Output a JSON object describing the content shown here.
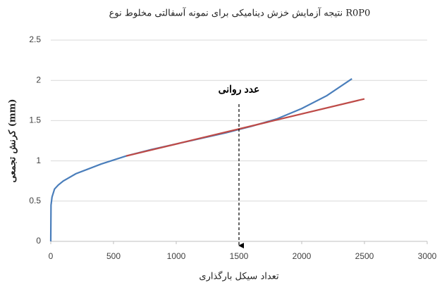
{
  "chart_data": {
    "type": "line",
    "title": "نتیجه آزمایش خزش دینامیکی برای نمونه آسفالتی مخلوط نوع R0P0",
    "xlabel": "تعداد سیکل بارگذاری",
    "ylabel": "کرنش تجمعی (mm)",
    "xlim": [
      0,
      3000
    ],
    "xticks": [
      0,
      500,
      1000,
      1500,
      2000,
      2500,
      3000
    ],
    "ylim": [
      0,
      2.5
    ],
    "yticks": [
      0,
      0.5,
      1,
      1.5,
      2,
      2.5
    ],
    "grid": true,
    "series": [
      {
        "color": "#4a7ebb",
        "x": [
          0,
          2,
          10,
          30,
          60,
          100,
          200,
          300,
          400,
          500,
          600,
          800,
          1000,
          1200,
          1400,
          1500,
          1600,
          1800,
          2000,
          2200,
          2400
        ],
        "values": [
          0,
          0.45,
          0.55,
          0.65,
          0.7,
          0.75,
          0.84,
          0.9,
          0.96,
          1.01,
          1.06,
          1.14,
          1.21,
          1.28,
          1.35,
          1.39,
          1.43,
          1.52,
          1.65,
          1.81,
          2.02
        ]
      },
      {
        "color": "#be4b48",
        "x": [
          600,
          2500
        ],
        "values": [
          1.06,
          1.77
        ]
      }
    ],
    "annotation": {
      "text": "عدد روانی",
      "x": 1500
    }
  }
}
